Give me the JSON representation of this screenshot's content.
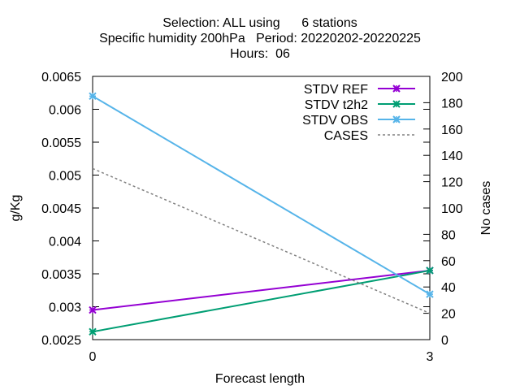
{
  "chart_data": {
    "type": "line",
    "title_lines": [
      "Selection: ALL using      6 stations",
      "Specific humidity 200hPa   Period: 20220202-20220225",
      "Hours:  06"
    ],
    "xlabel": "Forecast length",
    "ylabel": "g/Kg",
    "y2label": "No cases",
    "x": [
      0,
      3
    ],
    "xticks": [
      "0",
      "3"
    ],
    "xlim": [
      0,
      3
    ],
    "ylim": [
      0.0025,
      0.0065
    ],
    "yticks": [
      "0.0025",
      "0.003",
      "0.0035",
      "0.004",
      "0.0045",
      "0.005",
      "0.0055",
      "0.006",
      "0.0065"
    ],
    "y2lim": [
      0,
      200
    ],
    "y2ticks": [
      "0",
      "20",
      "40",
      "60",
      "80",
      "100",
      "120",
      "140",
      "160",
      "180",
      "200"
    ],
    "grid": false,
    "legend_position": "top-right",
    "series": [
      {
        "name": "STDV REF",
        "axis": "y",
        "color": "#9400d3",
        "style": "solid",
        "marker": "x",
        "values": [
          0.00295,
          0.00355
        ]
      },
      {
        "name": "STDV t2h2",
        "axis": "y",
        "color": "#009e73",
        "style": "solid",
        "marker": "x",
        "values": [
          0.00262,
          0.00355
        ]
      },
      {
        "name": "STDV OBS",
        "axis": "y",
        "color": "#56b4e9",
        "style": "solid",
        "marker": "x",
        "values": [
          0.0062,
          0.00319
        ]
      },
      {
        "name": "CASES",
        "axis": "y2",
        "color": "#808080",
        "style": "dashed",
        "marker": "none",
        "values": [
          130,
          20
        ]
      }
    ]
  }
}
